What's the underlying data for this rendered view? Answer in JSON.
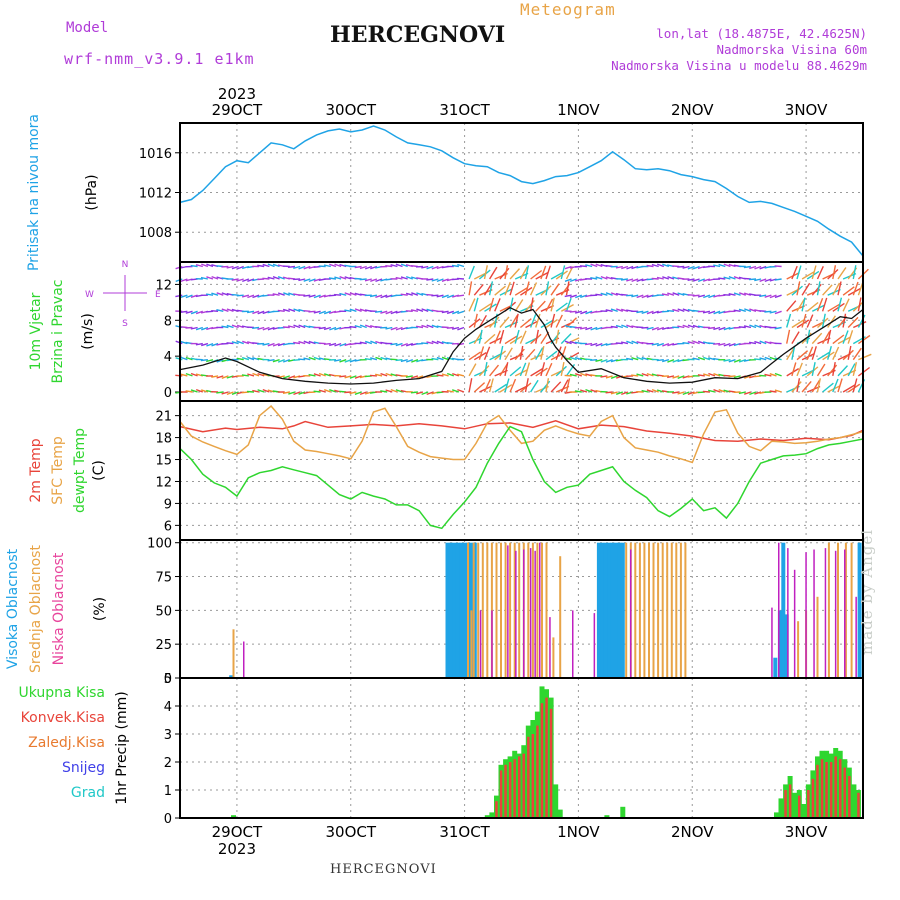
{
  "header": {
    "model_label": "Model",
    "model_name": "wrf-nmm_v3.9.1 e1km",
    "title": "HERCEGNOVI",
    "meteogram": "Meteogram",
    "lonlat": "lon,lat (18.4875E, 42.4625N)",
    "altitude": "Nadmorska Visina 60m",
    "model_altitude": "Nadmorska Visina u modelu 88.4629m"
  },
  "footer": {
    "station": "HERCEGNOVI",
    "credit": "made by Angel"
  },
  "time_axis": {
    "labels": [
      "29OCT",
      "30OCT",
      "31OCT",
      "1NOV",
      "2NOV",
      "3NOV"
    ],
    "year": "2023",
    "start_day": "28.5",
    "end_day": "34.5"
  },
  "colors": {
    "pressure": "#1fa3e6",
    "temp2m": "#e8443a",
    "sfc_temp": "#e8a447",
    "dewpoint": "#2fd62f",
    "wind_speed": "#111111",
    "high_cloud": "#1fa3e6",
    "mid_cloud": "#e8a447",
    "low_cloud": "#c020c0",
    "precip_total": "#2fd62f",
    "precip_conv": "#e8443a",
    "precip_frz": "#e87a2f",
    "snow": "#4040e8",
    "grad": "#20c8c8"
  },
  "chart_data": [
    {
      "id": "pressure",
      "type": "line",
      "ylabel": [
        "Pritisak na nivou mora",
        "(hPa)"
      ],
      "ylim": [
        1005,
        1019
      ],
      "yticks": [
        1008,
        1012,
        1016
      ],
      "grid": true,
      "series": [
        {
          "name": "Pritisak na nivou mora",
          "x": [
            28.5,
            28.6,
            28.7,
            28.8,
            28.9,
            29.0,
            29.1,
            29.2,
            29.3,
            29.4,
            29.5,
            29.6,
            29.7,
            29.8,
            29.9,
            30.0,
            30.1,
            30.2,
            30.3,
            30.4,
            30.5,
            30.6,
            30.7,
            30.8,
            30.9,
            31.0,
            31.1,
            31.2,
            31.3,
            31.4,
            31.5,
            31.6,
            31.7,
            31.8,
            31.9,
            32.0,
            32.1,
            32.2,
            32.3,
            32.4,
            32.5,
            32.6,
            32.7,
            32.8,
            32.9,
            33.0,
            33.1,
            33.2,
            33.3,
            33.4,
            33.5,
            33.6,
            33.7,
            33.8,
            33.9,
            34.0,
            34.1,
            34.2,
            34.3,
            34.4,
            34.5
          ],
          "y": [
            1011.0,
            1011.3,
            1012.2,
            1013.4,
            1014.6,
            1015.2,
            1015.0,
            1016.0,
            1017.0,
            1016.8,
            1016.4,
            1017.2,
            1017.8,
            1018.2,
            1018.4,
            1018.1,
            1018.3,
            1018.7,
            1018.3,
            1017.6,
            1017.0,
            1016.8,
            1016.6,
            1016.2,
            1015.5,
            1014.9,
            1014.7,
            1014.6,
            1014.0,
            1013.7,
            1013.1,
            1012.9,
            1013.2,
            1013.6,
            1013.7,
            1014.0,
            1014.6,
            1015.2,
            1016.1,
            1015.3,
            1014.4,
            1014.3,
            1014.4,
            1014.2,
            1013.8,
            1013.6,
            1013.3,
            1013.1,
            1012.4,
            1011.6,
            1011.0,
            1011.1,
            1010.9,
            1010.5,
            1010.1,
            1009.6,
            1009.1,
            1008.3,
            1007.6,
            1007.0,
            1005.6
          ]
        }
      ]
    },
    {
      "id": "wind",
      "type": "line",
      "ylabel": [
        "10m Vjetar",
        "Brzina i Pravac",
        "(m/s)"
      ],
      "ylim": [
        -1,
        14.5
      ],
      "yticks": [
        0,
        4,
        8,
        12
      ],
      "grid": true,
      "compass": {
        "n": "N",
        "e": "E",
        "w": "W",
        "s": "S"
      },
      "series": [
        {
          "name": "Brzina",
          "x": [
            28.5,
            28.7,
            28.9,
            29.0,
            29.2,
            29.4,
            29.6,
            29.8,
            30.0,
            30.2,
            30.4,
            30.6,
            30.8,
            30.9,
            31.0,
            31.1,
            31.2,
            31.3,
            31.4,
            31.5,
            31.6,
            31.7,
            31.75,
            31.8,
            31.9,
            32.0,
            32.2,
            32.4,
            32.6,
            32.8,
            33.0,
            33.2,
            33.4,
            33.6,
            33.7,
            33.8,
            33.9,
            34.0,
            34.1,
            34.2,
            34.3,
            34.4,
            34.5
          ],
          "y": [
            2.5,
            3.0,
            3.8,
            3.4,
            2.2,
            1.5,
            1.2,
            1.0,
            0.9,
            1.0,
            1.3,
            1.5,
            2.3,
            4.5,
            6.0,
            7.0,
            7.8,
            8.6,
            9.4,
            8.8,
            9.2,
            7.5,
            6.0,
            5.0,
            3.5,
            2.2,
            2.6,
            1.6,
            1.2,
            1.0,
            1.1,
            1.6,
            1.5,
            2.2,
            3.2,
            4.2,
            5.1,
            6.0,
            6.8,
            7.6,
            8.4,
            8.2,
            9.2
          ]
        }
      ]
    },
    {
      "id": "temperature",
      "type": "line",
      "ylabel": [
        "2m Temp",
        "SFC Temp",
        "dewpt Temp",
        "(C)"
      ],
      "ylim": [
        4,
        23
      ],
      "yticks": [
        6,
        9,
        12,
        15,
        18,
        21
      ],
      "grid": true,
      "series": [
        {
          "name": "2m Temp",
          "x": [
            28.5,
            28.7,
            28.9,
            29.0,
            29.2,
            29.4,
            29.5,
            29.6,
            29.8,
            30.0,
            30.2,
            30.4,
            30.6,
            30.8,
            31.0,
            31.2,
            31.4,
            31.6,
            31.8,
            32.0,
            32.2,
            32.4,
            32.6,
            32.8,
            33.0,
            33.2,
            33.4,
            33.6,
            33.8,
            34.0,
            34.2,
            34.4,
            34.5
          ],
          "y": [
            19.5,
            18.8,
            19.3,
            19.1,
            19.4,
            19.2,
            19.6,
            20.2,
            19.4,
            19.6,
            19.8,
            19.6,
            19.9,
            19.6,
            19.2,
            19.9,
            20.0,
            19.4,
            20.3,
            19.2,
            19.7,
            19.5,
            18.9,
            18.6,
            18.2,
            17.6,
            17.5,
            17.8,
            17.6,
            17.9,
            17.7,
            18.3,
            19.0
          ]
        },
        {
          "name": "SFC Temp",
          "x": [
            28.5,
            28.6,
            28.7,
            28.8,
            28.9,
            29.0,
            29.1,
            29.2,
            29.3,
            29.4,
            29.5,
            29.6,
            29.7,
            29.8,
            29.9,
            30.0,
            30.1,
            30.2,
            30.3,
            30.4,
            30.5,
            30.6,
            30.7,
            30.8,
            30.9,
            31.0,
            31.1,
            31.2,
            31.3,
            31.4,
            31.5,
            31.6,
            31.7,
            31.8,
            31.9,
            32.0,
            32.1,
            32.2,
            32.3,
            32.4,
            32.5,
            32.6,
            32.7,
            32.8,
            32.9,
            33.0,
            33.1,
            33.2,
            33.3,
            33.4,
            33.5,
            33.6,
            33.7,
            33.8,
            33.9,
            34.0,
            34.1,
            34.2,
            34.3,
            34.4,
            34.5
          ],
          "y": [
            20.2,
            18.2,
            17.4,
            16.8,
            16.2,
            15.7,
            17.0,
            21.0,
            22.3,
            20.5,
            17.5,
            16.3,
            16.1,
            15.8,
            15.5,
            15.1,
            17.5,
            21.5,
            22.0,
            19.5,
            16.8,
            16.0,
            15.4,
            15.2,
            15.0,
            15.0,
            17.2,
            20.0,
            21.0,
            19.0,
            17.2,
            17.5,
            19.0,
            19.6,
            19.0,
            18.5,
            18.2,
            20.2,
            21.0,
            18.0,
            16.6,
            16.3,
            16.0,
            15.5,
            15.1,
            14.6,
            18.5,
            21.5,
            21.8,
            18.6,
            16.8,
            16.2,
            17.5,
            17.4,
            17.2,
            17.3,
            17.5,
            17.8,
            18.0,
            18.4,
            18.8
          ]
        },
        {
          "name": "dewpt Temp",
          "x": [
            28.5,
            28.6,
            28.7,
            28.8,
            28.9,
            29.0,
            29.1,
            29.2,
            29.3,
            29.4,
            29.5,
            29.6,
            29.7,
            29.8,
            29.9,
            30.0,
            30.1,
            30.2,
            30.3,
            30.4,
            30.5,
            30.6,
            30.7,
            30.8,
            30.9,
            31.0,
            31.1,
            31.2,
            31.3,
            31.4,
            31.5,
            31.6,
            31.7,
            31.8,
            31.9,
            32.0,
            32.1,
            32.2,
            32.3,
            32.4,
            32.5,
            32.6,
            32.7,
            32.8,
            32.9,
            33.0,
            33.1,
            33.2,
            33.3,
            33.4,
            33.5,
            33.6,
            33.7,
            33.8,
            33.9,
            34.0,
            34.1,
            34.2,
            34.3,
            34.4,
            34.5
          ],
          "y": [
            16.5,
            15.0,
            13.0,
            11.8,
            11.2,
            10.0,
            12.5,
            13.2,
            13.5,
            14.0,
            13.6,
            13.2,
            12.8,
            11.5,
            10.2,
            9.6,
            10.5,
            10.0,
            9.6,
            8.8,
            8.8,
            8.0,
            6.0,
            5.6,
            7.5,
            9.2,
            11.2,
            14.5,
            17.2,
            19.5,
            18.8,
            15.0,
            12.0,
            10.5,
            11.2,
            11.5,
            13.0,
            13.5,
            14.0,
            12.0,
            10.8,
            9.8,
            8.0,
            7.2,
            8.3,
            9.6,
            8.0,
            8.4,
            7.0,
            9.0,
            12.0,
            14.5,
            15.0,
            15.5,
            15.6,
            15.8,
            16.5,
            17.0,
            17.2,
            17.5,
            17.8
          ]
        }
      ]
    },
    {
      "id": "clouds",
      "type": "bar",
      "ylabel": [
        "Visoka Oblacnost",
        "Srednja Oblacnost",
        "Niska Oblacnost",
        "(%)"
      ],
      "ylim": [
        0,
        102
      ],
      "yticks": [
        0,
        25,
        50,
        75,
        100
      ],
      "grid": true,
      "series": [
        {
          "name": "Visoka Oblacnost",
          "x": [
            28.95,
            30.85,
            30.88,
            30.91,
            30.94,
            30.97,
            31.0,
            31.03,
            31.06,
            31.09,
            32.18,
            32.21,
            32.24,
            32.27,
            32.3,
            32.33,
            32.36,
            32.39,
            33.73,
            33.77,
            33.8,
            33.83,
            34.47
          ],
          "y": [
            2,
            100,
            100,
            100,
            100,
            100,
            100,
            100,
            100,
            100,
            100,
            100,
            100,
            100,
            100,
            100,
            100,
            100,
            15,
            50,
            100,
            47,
            100
          ]
        },
        {
          "name": "Srednja Oblacnost",
          "x": [
            28.97,
            31.03,
            31.06,
            31.08,
            31.12,
            31.16,
            31.2,
            31.24,
            31.28,
            31.32,
            31.36,
            31.4,
            31.44,
            31.48,
            31.52,
            31.56,
            31.6,
            31.64,
            31.68,
            31.72,
            31.78,
            31.84,
            32.42,
            32.46,
            32.5,
            32.54,
            32.58,
            32.62,
            32.66,
            32.7,
            32.74,
            32.78,
            32.82,
            32.86,
            32.9,
            32.94,
            33.93,
            34.0,
            34.1,
            34.2,
            34.28,
            34.35,
            34.4
          ],
          "y": [
            36,
            100,
            50,
            100,
            100,
            100,
            100,
            100,
            100,
            100,
            100,
            100,
            100,
            100,
            100,
            100,
            100,
            100,
            100,
            100,
            30,
            90,
            100,
            100,
            100,
            100,
            100,
            100,
            100,
            100,
            100,
            100,
            100,
            100,
            100,
            100,
            42,
            50,
            60,
            100,
            100,
            100,
            100
          ]
        },
        {
          "name": "Niska Oblacnost",
          "x": [
            29.06,
            31.14,
            31.24,
            31.38,
            31.45,
            31.52,
            31.58,
            31.62,
            31.66,
            31.75,
            31.95,
            32.14,
            32.46,
            33.7,
            33.76,
            33.84,
            33.9,
            34.0,
            34.07,
            34.17,
            34.26,
            34.34,
            34.44
          ],
          "y": [
            27,
            50,
            50,
            98,
            94,
            95,
            96,
            94,
            100,
            45,
            50,
            48,
            95,
            52,
            100,
            96,
            80,
            93,
            95,
            96,
            94,
            95,
            60
          ]
        }
      ]
    },
    {
      "id": "precip",
      "type": "bar",
      "ylabel": [
        "Ukupna Kisa",
        "Konvek.Kisa",
        "Zaledj.Kisa",
        "Snijeg",
        "Grad",
        "1hr Precip (mm)"
      ],
      "ylim": [
        0,
        5
      ],
      "yticks": [
        0,
        1,
        2,
        3,
        4,
        5
      ],
      "grid": true,
      "series": [
        {
          "name": "Ukupna Kisa",
          "x": [
            28.97,
            31.2,
            31.24,
            31.28,
            31.32,
            31.36,
            31.4,
            31.44,
            31.48,
            31.52,
            31.56,
            31.6,
            31.64,
            31.68,
            31.72,
            31.76,
            31.8,
            31.84,
            32.25,
            32.39,
            33.74,
            33.78,
            33.82,
            33.86,
            33.9,
            33.94,
            33.98,
            34.02,
            34.06,
            34.1,
            34.14,
            34.18,
            34.22,
            34.26,
            34.3,
            34.34,
            34.38,
            34.42,
            34.46
          ],
          "y": [
            0.1,
            0.1,
            0.2,
            0.8,
            1.9,
            2.1,
            2.2,
            2.4,
            2.3,
            2.6,
            3.3,
            3.5,
            3.8,
            4.7,
            4.6,
            4.3,
            1.2,
            0.3,
            0.1,
            0.4,
            0.2,
            0.7,
            1.2,
            1.5,
            0.9,
            1.0,
            0.5,
            1.2,
            1.7,
            2.2,
            2.4,
            2.4,
            2.3,
            2.5,
            2.4,
            2.1,
            1.8,
            1.2,
            1.0
          ]
        },
        {
          "name": "Konvek.Kisa",
          "x": [
            31.28,
            31.32,
            31.36,
            31.4,
            31.44,
            31.48,
            31.52,
            31.56,
            31.6,
            31.64,
            31.68,
            31.72,
            31.76,
            33.82,
            33.86,
            33.94,
            34.02,
            34.06,
            34.1,
            34.14,
            34.18,
            34.22,
            34.26,
            34.3,
            34.34,
            34.38,
            34.46
          ],
          "y": [
            0.6,
            1.7,
            1.9,
            2.0,
            2.1,
            2.2,
            2.3,
            2.9,
            3.0,
            3.3,
            4.1,
            4.3,
            3.9,
            1.0,
            1.2,
            0.8,
            1.0,
            1.4,
            1.9,
            2.1,
            2.0,
            2.0,
            2.2,
            2.1,
            1.8,
            1.5,
            0.9
          ]
        }
      ]
    }
  ]
}
